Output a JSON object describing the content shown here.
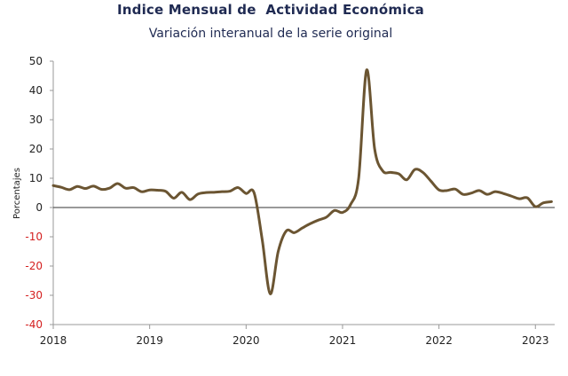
{
  "chart_data": {
    "type": "line",
    "title": "Indice Mensual de  Actividad Económica",
    "subtitle": "Variación interanual de la serie original",
    "ylabel": "Porcentajes",
    "xlabel": "",
    "ylim": [
      -40,
      50
    ],
    "xlim": [
      2018.0,
      2023.2
    ],
    "yticks": [
      "50",
      "40",
      "30",
      "20",
      "10",
      "0",
      "-10",
      "-20",
      "-30",
      "-40"
    ],
    "xticks": [
      "2018",
      "2019",
      "2020",
      "2021",
      "2022",
      "2023"
    ],
    "grid": false,
    "line_color": "#6b5532",
    "negative_tick_color": "#d42020",
    "series": [
      {
        "x": [
          2018.0,
          2018.083,
          2018.167,
          2018.25,
          2018.333,
          2018.417,
          2018.5,
          2018.583,
          2018.667,
          2018.75,
          2018.833,
          2018.917,
          2019.0,
          2019.083,
          2019.167,
          2019.25,
          2019.333,
          2019.417,
          2019.5,
          2019.583,
          2019.667,
          2019.75,
          2019.833,
          2019.917,
          2020.0,
          2020.083,
          2020.167,
          2020.25,
          2020.333,
          2020.417,
          2020.5,
          2020.583,
          2020.667,
          2020.75,
          2020.833,
          2020.917,
          2021.0,
          2021.083,
          2021.167,
          2021.25,
          2021.333,
          2021.417,
          2021.5,
          2021.583,
          2021.667,
          2021.75,
          2021.833,
          2021.917,
          2022.0,
          2022.083,
          2022.167,
          2022.25,
          2022.333,
          2022.417,
          2022.5,
          2022.583,
          2022.667,
          2022.75,
          2022.833,
          2022.917,
          2023.0,
          2023.083,
          2023.167
        ],
        "values": [
          7.5,
          6.9,
          6.1,
          7.2,
          6.5,
          7.3,
          6.2,
          6.6,
          8.2,
          6.6,
          6.8,
          5.4,
          6.0,
          5.9,
          5.5,
          3.2,
          5.2,
          2.7,
          4.6,
          5.1,
          5.2,
          5.4,
          5.6,
          6.8,
          4.8,
          5.0,
          -11.0,
          -29.5,
          -15.0,
          -8.0,
          -8.6,
          -7.0,
          -5.5,
          -4.3,
          -3.3,
          -1.0,
          -1.7,
          1.0,
          10.0,
          47.0,
          20.0,
          12.5,
          12.0,
          11.5,
          9.5,
          13.0,
          12.0,
          9.0,
          6.0,
          5.8,
          6.3,
          4.5,
          4.9,
          5.8,
          4.5,
          5.4,
          4.8,
          3.9,
          3.0,
          3.3,
          0.3,
          1.6,
          2.0
        ]
      }
    ]
  }
}
